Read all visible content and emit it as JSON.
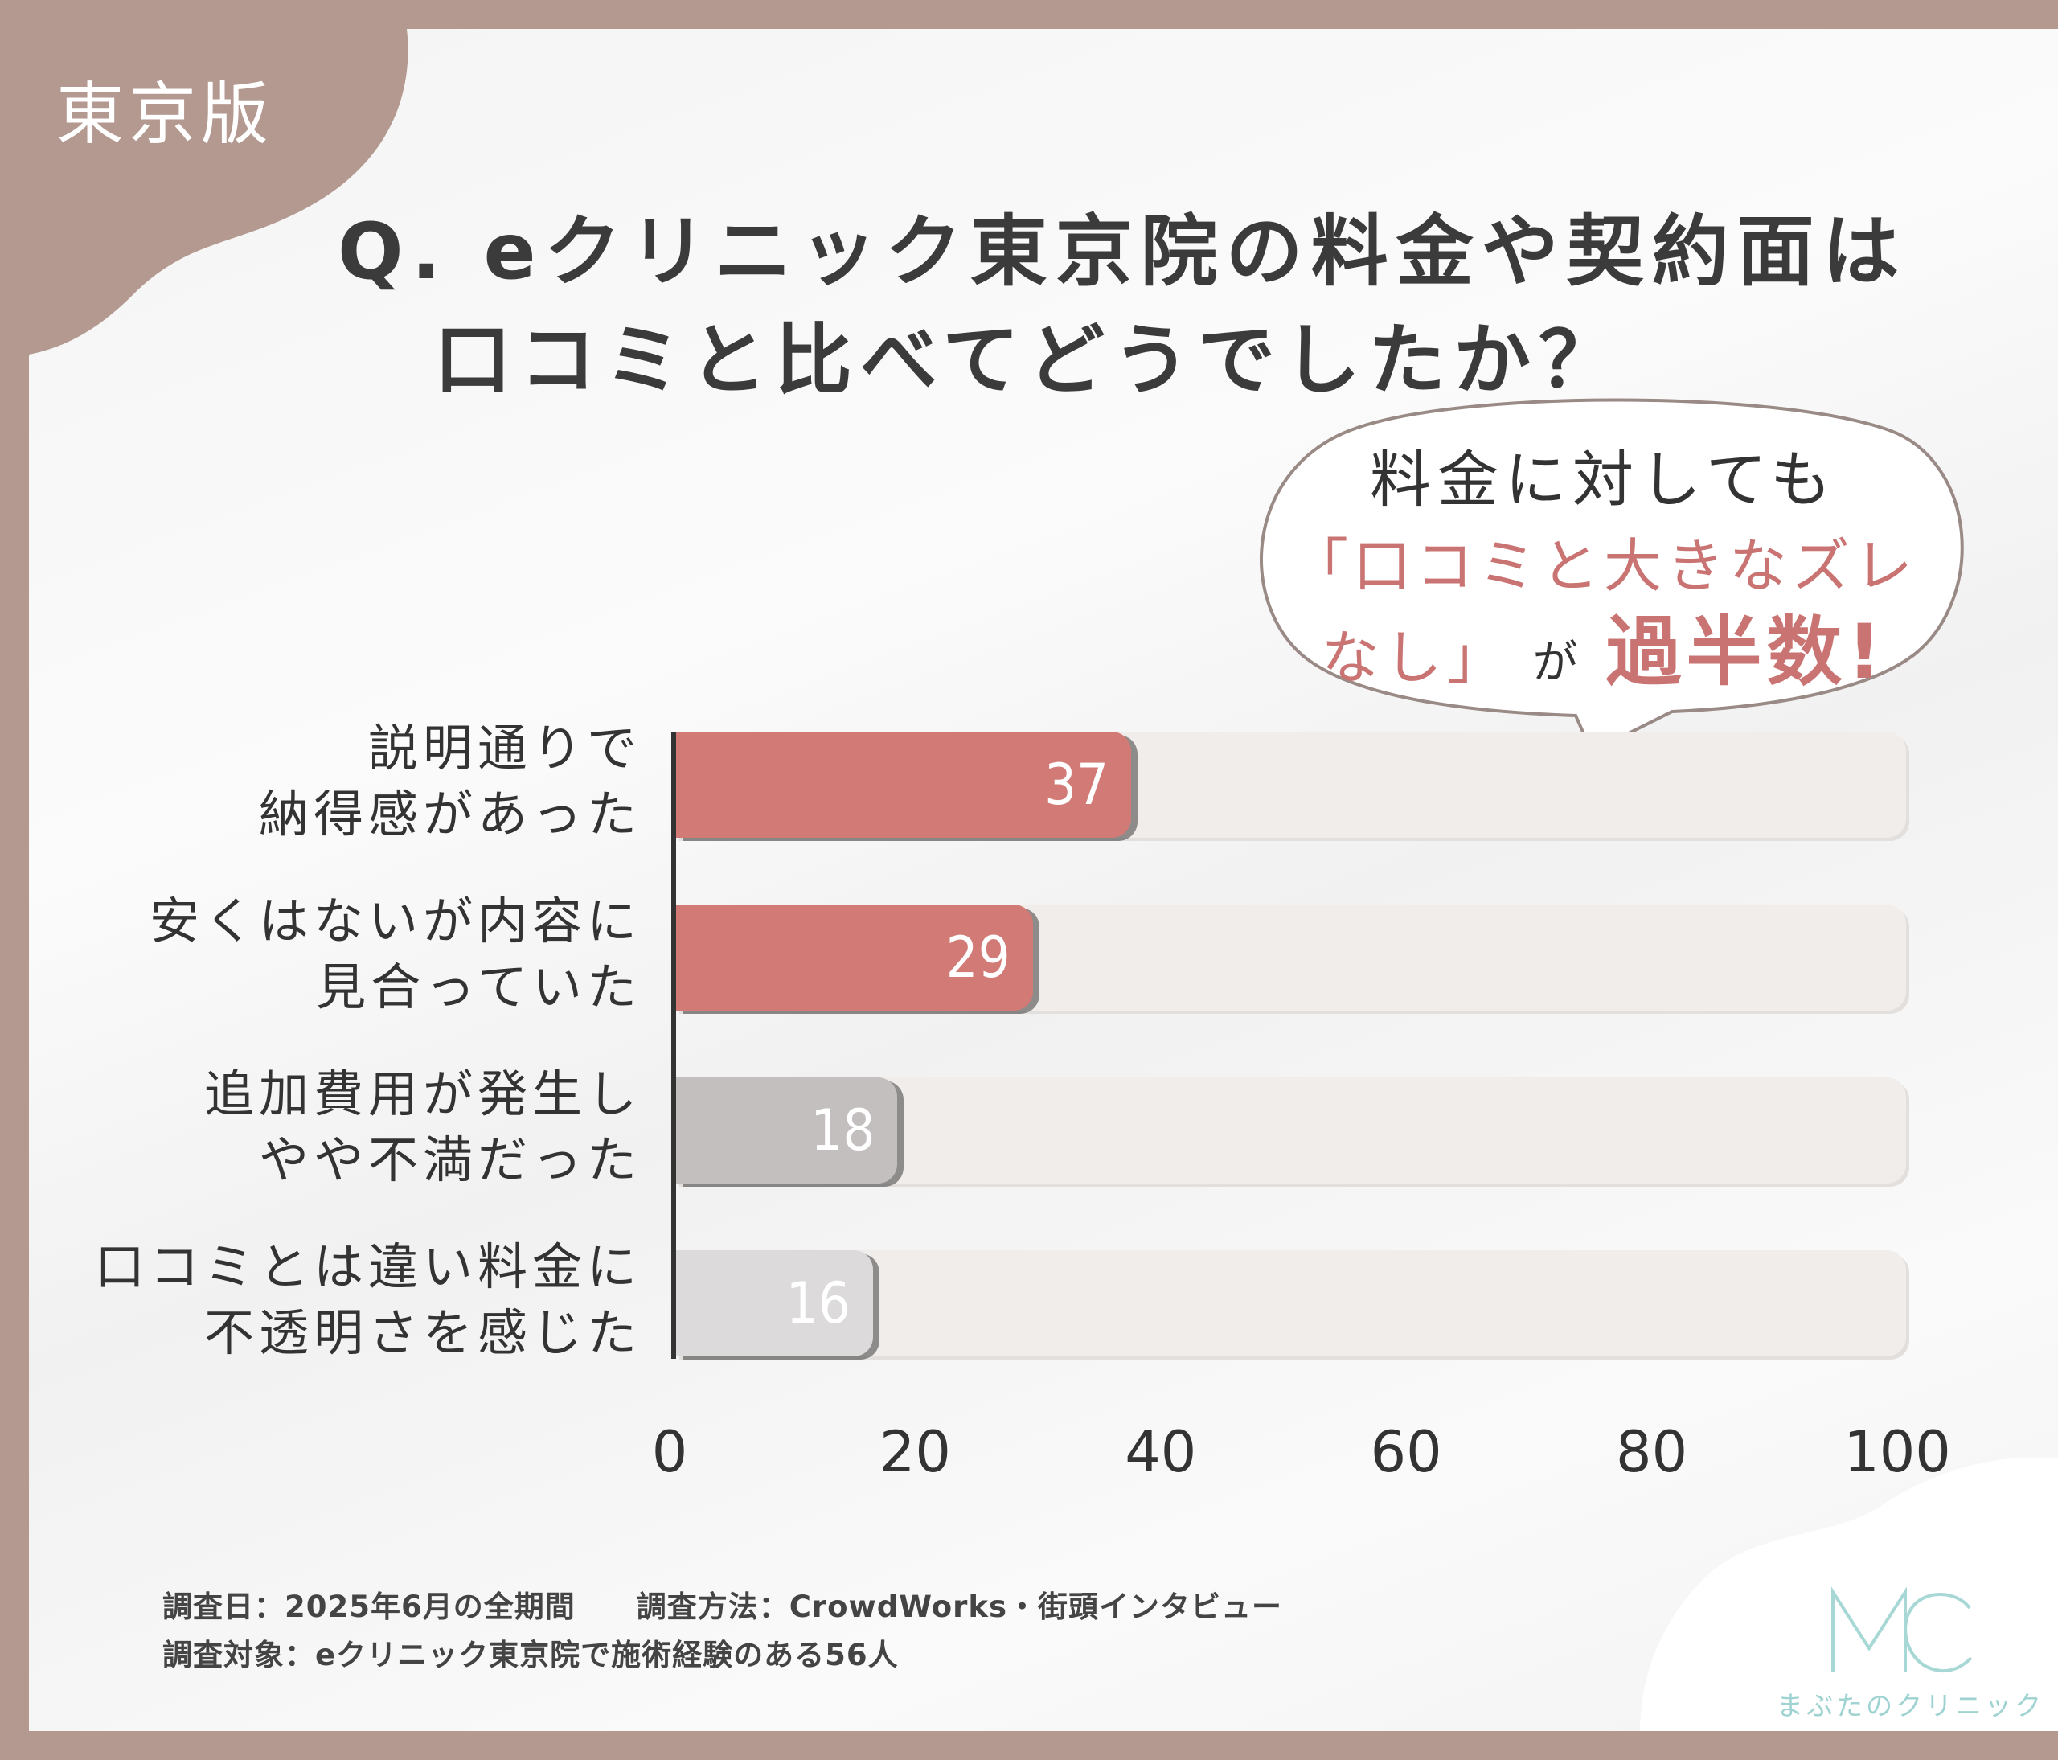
{
  "region_tag": "東京版",
  "title_line1": "Q. eクリニック東京院の料金や契約面は",
  "title_line2": "口コミと比べてどうでしたか？",
  "callout": {
    "line1": "料金に対しても",
    "line2": "「口コミと大きなズレ",
    "line3_a": "なし」",
    "line3_b": "が",
    "line3_c": "過半数!"
  },
  "chart_data": {
    "type": "bar",
    "orientation": "horizontal",
    "categories": [
      "説明通りで\n納得感があった",
      "安くはないが内容に\n見合っていた",
      "追加費用が発生し\nやや不満だった",
      "口コミとは違い料金に\n不透明さを感じた"
    ],
    "values": [
      37,
      29,
      18,
      16
    ],
    "value_labels": [
      "37",
      "29",
      "18",
      "16"
    ],
    "colors": [
      "#d27a75",
      "#d27a75",
      "#c3bfbe",
      "#dcdada"
    ],
    "xlim": [
      0,
      100
    ],
    "xticks": [
      "0",
      "20",
      "40",
      "60",
      "80",
      "100"
    ],
    "track_color": "#f0edeb",
    "title": "",
    "xlabel": "",
    "ylabel": ""
  },
  "notes": {
    "line1": "調査日：2025年6月の全期間　　調査方法：CrowdWorks・街頭インタビュー",
    "line2": "調査対象：eクリニック東京院で施術経験のある56人"
  },
  "logo": {
    "mark": "MC",
    "name": "まぶたのクリニック"
  }
}
